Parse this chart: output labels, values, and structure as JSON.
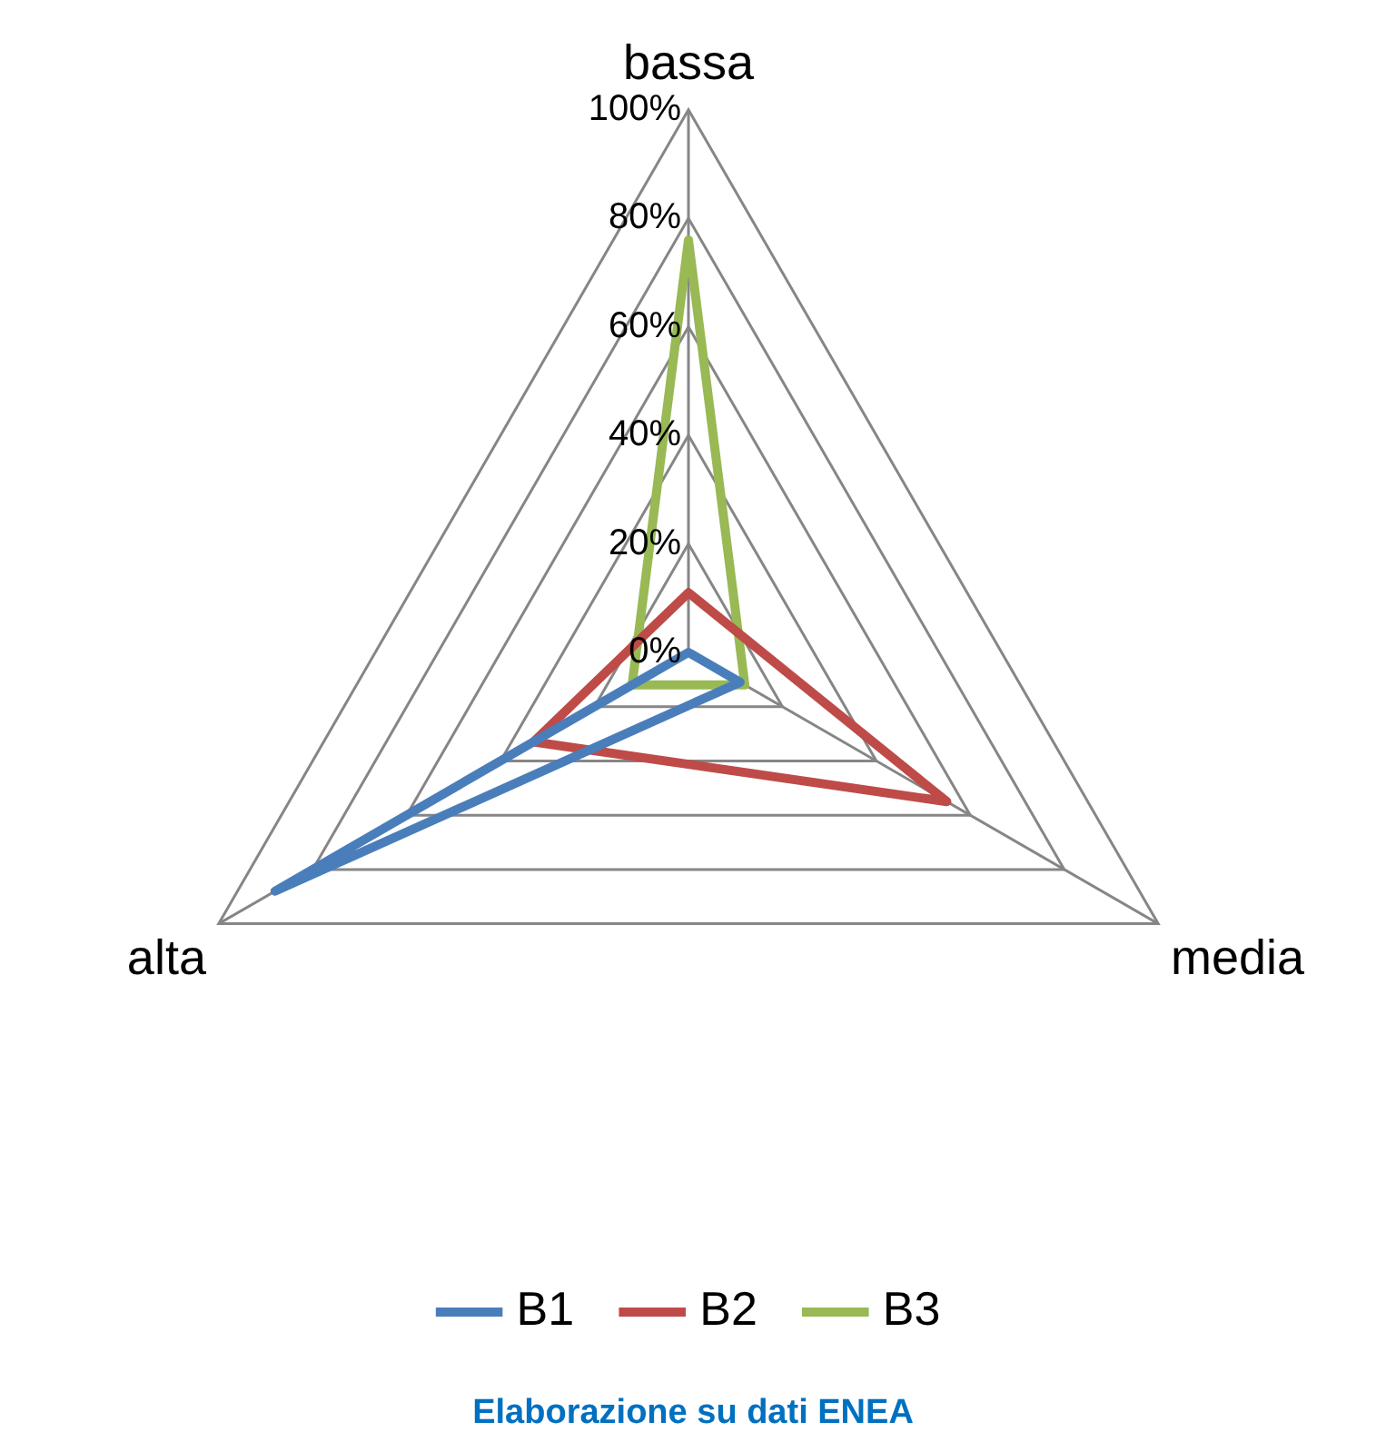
{
  "chart_data": {
    "type": "radar",
    "categories": [
      "bassa",
      "media",
      "alta"
    ],
    "series": [
      {
        "name": "B1",
        "color": "#4a7ebb",
        "values": [
          0,
          11,
          88
        ]
      },
      {
        "name": "B2",
        "color": "#be4b48",
        "values": [
          11,
          55,
          33
        ]
      },
      {
        "name": "B3",
        "color": "#98b954",
        "values": [
          76,
          12,
          12
        ]
      }
    ],
    "ylim": [
      0,
      100
    ],
    "yticks": [
      {
        "value": 0,
        "label": "0%"
      },
      {
        "value": 20,
        "label": "20%"
      },
      {
        "value": 40,
        "label": "40%"
      },
      {
        "value": 60,
        "label": "60%"
      },
      {
        "value": 80,
        "label": "80%"
      },
      {
        "value": 100,
        "label": "100%"
      }
    ],
    "grid": true,
    "legend": "bottom",
    "marker": "none",
    "line_style": "solid",
    "annotations": [
      "Elaborazione su dati ENEA"
    ]
  }
}
